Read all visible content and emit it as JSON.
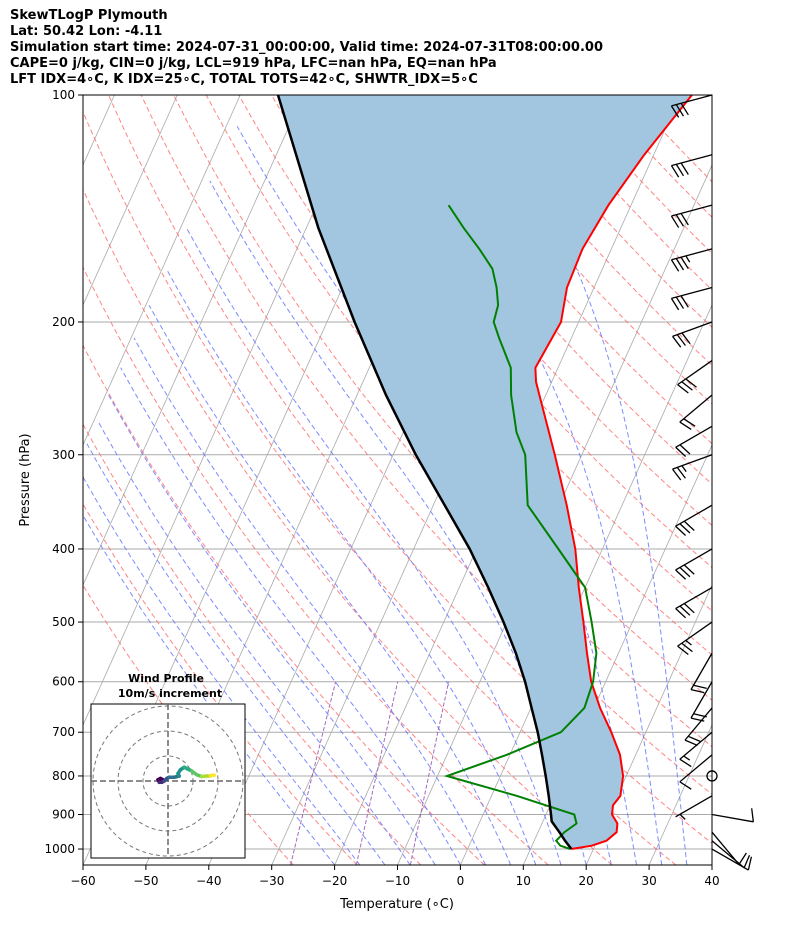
{
  "header": {
    "line1": "SkewTLogP Plymouth",
    "line2": "Lat: 50.42   Lon: -4.11",
    "line3": "Simulation start time: 2024-07-31_00:00:00, Valid time: 2024-07-31T08:00:00.00",
    "line4": "CAPE=0 j/kg, CIN=0 j/kg, LCL=919 hPa, LFC=nan hPa, EQ=nan hPa",
    "line5": "LFT IDX=4∘C, K IDX=25∘C, TOTAL TOTS=42∘C, SHWTR_IDX=5∘C"
  },
  "chart_data": {
    "type": "line",
    "title": "",
    "xlabel": "Temperature (∘C)",
    "ylabel": "Pressure (hPa)",
    "xlim": [
      -60,
      40
    ],
    "ylim": [
      1050,
      100
    ],
    "y_scale": "log",
    "x_ticks": [
      -60,
      -50,
      -40,
      -30,
      -20,
      -10,
      0,
      10,
      20,
      30,
      40
    ],
    "y_ticks": [
      100,
      200,
      300,
      400,
      500,
      600,
      700,
      800,
      900,
      1000
    ],
    "grid": true,
    "colors": {
      "temperature": "#ff0000",
      "dewpoint": "#008000",
      "parcel": "#000000",
      "fill": "#a3c6e0",
      "dry_adiabat": "#ff6666",
      "moist_adiabat": "#6677ff",
      "mixing_ratio": "#9b59b6",
      "isotherm": "#aaaaaa"
    },
    "series": [
      {
        "key": "temperature",
        "pressure": [
          1000,
          990,
          975,
          950,
          925,
          900,
          875,
          850,
          800,
          750,
          700,
          650,
          600,
          550,
          500,
          450,
          400,
          350,
          300,
          250,
          240,
          230,
          200,
          180,
          160,
          140,
          120,
          100
        ],
        "temperature": [
          16.5,
          19.5,
          21.5,
          22.5,
          22.0,
          20.5,
          20.0,
          20.5,
          19.5,
          17.5,
          14.5,
          11.0,
          7.7,
          5.0,
          2.2,
          -1.0,
          -4.3,
          -8.8,
          -14.3,
          -21.0,
          -22.5,
          -23.6,
          -22.8,
          -24.3,
          -24.6,
          -23.6,
          -21.5,
          -18.2
        ]
      },
      {
        "key": "dewpoint",
        "pressure": [
          1000,
          990,
          975,
          950,
          925,
          900,
          850,
          800,
          750,
          700,
          650,
          600,
          550,
          500,
          450,
          400,
          350,
          300,
          280,
          250,
          230,
          210,
          200,
          190,
          180,
          170,
          160,
          150,
          140
        ],
        "temperature": [
          16.3,
          14.5,
          13.5,
          14.2,
          15.5,
          14.5,
          4.0,
          -8.5,
          -0.5,
          6.5,
          8.5,
          8.0,
          6.5,
          3.5,
          0.0,
          -7.0,
          -15.0,
          -19.0,
          -22.0,
          -25.5,
          -27.5,
          -31.5,
          -33.5,
          -34.0,
          -35.5,
          -37.5,
          -41.0,
          -45.0,
          -49.0
        ]
      },
      {
        "key": "parcel",
        "pressure": [
          1000,
          975,
          950,
          919,
          900,
          850,
          800,
          750,
          700,
          650,
          600,
          550,
          500,
          450,
          400,
          350,
          300,
          250,
          200,
          150,
          100
        ],
        "temperature": [
          16.5,
          14.9,
          13.4,
          11.4,
          10.8,
          9.1,
          7.2,
          5.1,
          2.8,
          0.1,
          -2.8,
          -6.3,
          -10.5,
          -15.4,
          -21.1,
          -28.2,
          -36.4,
          -45.4,
          -55.6,
          -68.1,
          -84.0
        ]
      }
    ],
    "wind_barbs": {
      "pressure": [
        1000,
        975,
        950,
        900,
        850,
        800,
        750,
        700,
        650,
        600,
        550,
        500,
        450,
        400,
        350,
        300,
        275,
        250,
        225,
        200,
        180,
        160,
        140,
        120,
        100
      ],
      "speed_kt": [
        12,
        10,
        8,
        9,
        5,
        0,
        11,
        16,
        20,
        22,
        22,
        26,
        30,
        30,
        30,
        26,
        22,
        22,
        30,
        30,
        32,
        35,
        30,
        28,
        28
      ],
      "direction_deg": [
        120,
        130,
        140,
        100,
        240,
        0,
        230,
        230,
        220,
        210,
        210,
        235,
        240,
        240,
        240,
        250,
        240,
        230,
        235,
        250,
        255,
        255,
        255,
        255,
        255
      ]
    },
    "hodograph": {
      "title": "Wind Profile",
      "subtitle": "10m/s increment",
      "rings": [
        10,
        20,
        30
      ],
      "u": [
        -2,
        -3,
        -4,
        -3.5,
        -2.5,
        -1.5,
        -0.5,
        0.5,
        2.5,
        4.5,
        4.0,
        5.0,
        6.5,
        7.5,
        9.5,
        11.5,
        13.5,
        15.5,
        17.0,
        17.5,
        18.5
      ],
      "v": [
        0.5,
        1.0,
        0.5,
        -0.5,
        -0.5,
        0.0,
        1.0,
        1.5,
        1.5,
        2.0,
        3.0,
        4.5,
        5.5,
        5.0,
        4.0,
        2.5,
        1.8,
        2.0,
        2.0,
        2.3,
        2.3
      ]
    }
  }
}
